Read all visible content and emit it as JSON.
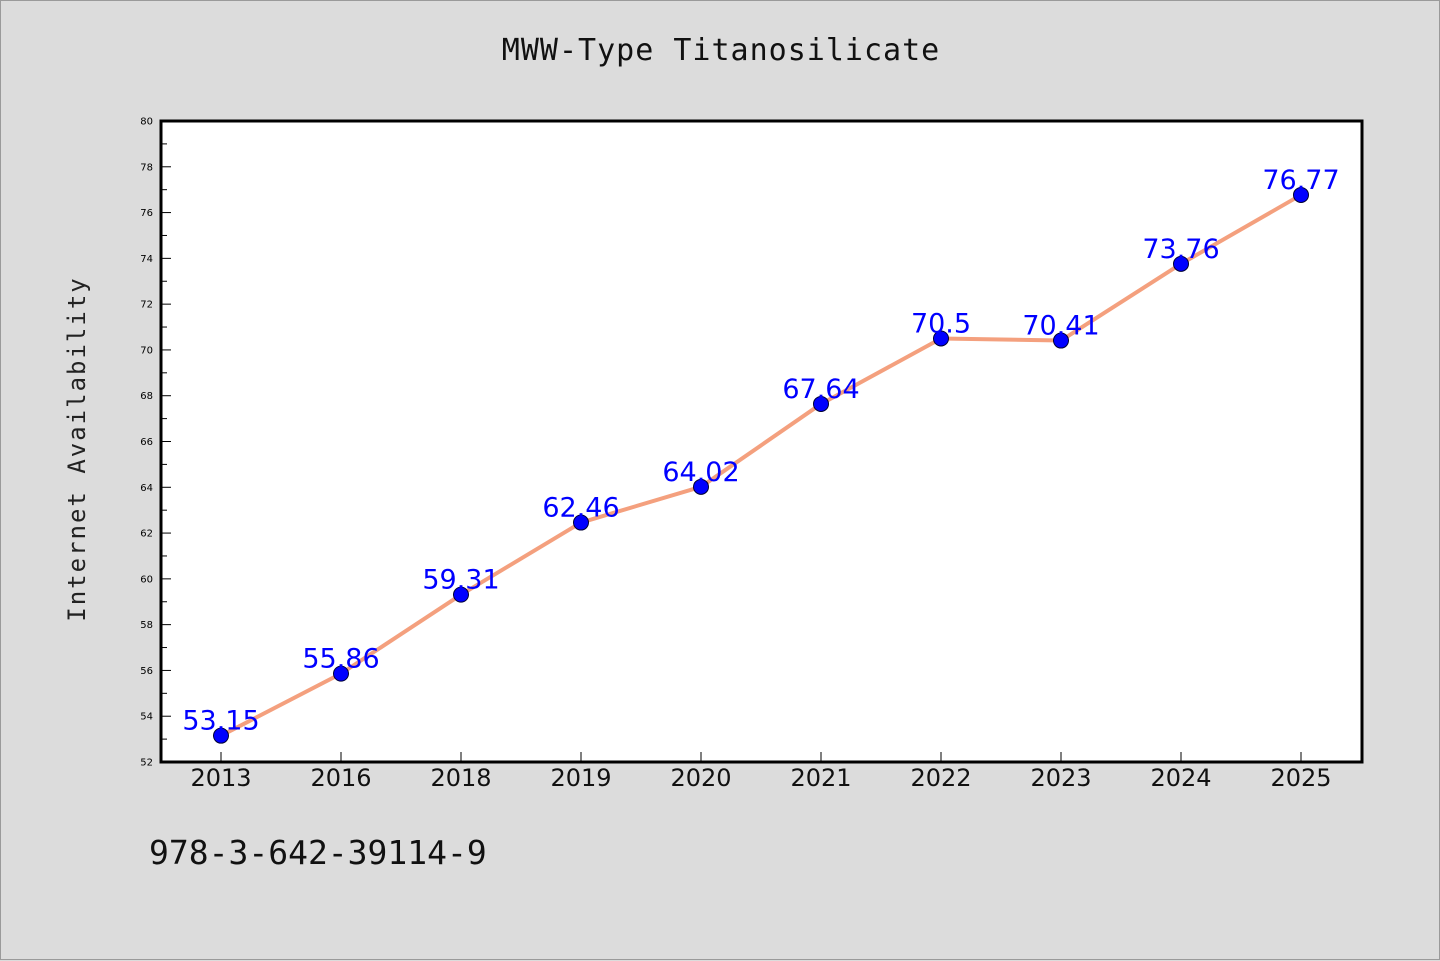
{
  "chart_data": {
    "type": "line",
    "title": "MWW-Type Titanosilicate",
    "xlabel": "",
    "ylabel": "Internet Availability",
    "categories": [
      "2013",
      "2016",
      "2018",
      "2019",
      "2020",
      "2021",
      "2022",
      "2023",
      "2024",
      "2025"
    ],
    "values": [
      53.15,
      55.86,
      59.31,
      62.46,
      64.02,
      67.64,
      70.5,
      70.41,
      73.76,
      76.77
    ],
    "data_labels": [
      "53.15",
      "55.86",
      "59.31",
      "62.46",
      "64.02",
      "67.64",
      "70.5",
      "70.41",
      "73.76",
      "76.77"
    ],
    "ylim": [
      52,
      80
    ],
    "yticks": [
      52,
      54,
      56,
      58,
      60,
      62,
      64,
      66,
      68,
      70,
      72,
      74,
      76,
      78,
      80
    ],
    "grid": false,
    "line_color": "#f4a07e",
    "marker_color": "#0000ff",
    "label_color": "#0000ff"
  },
  "footer": {
    "code": "978-3-642-39114-9"
  }
}
